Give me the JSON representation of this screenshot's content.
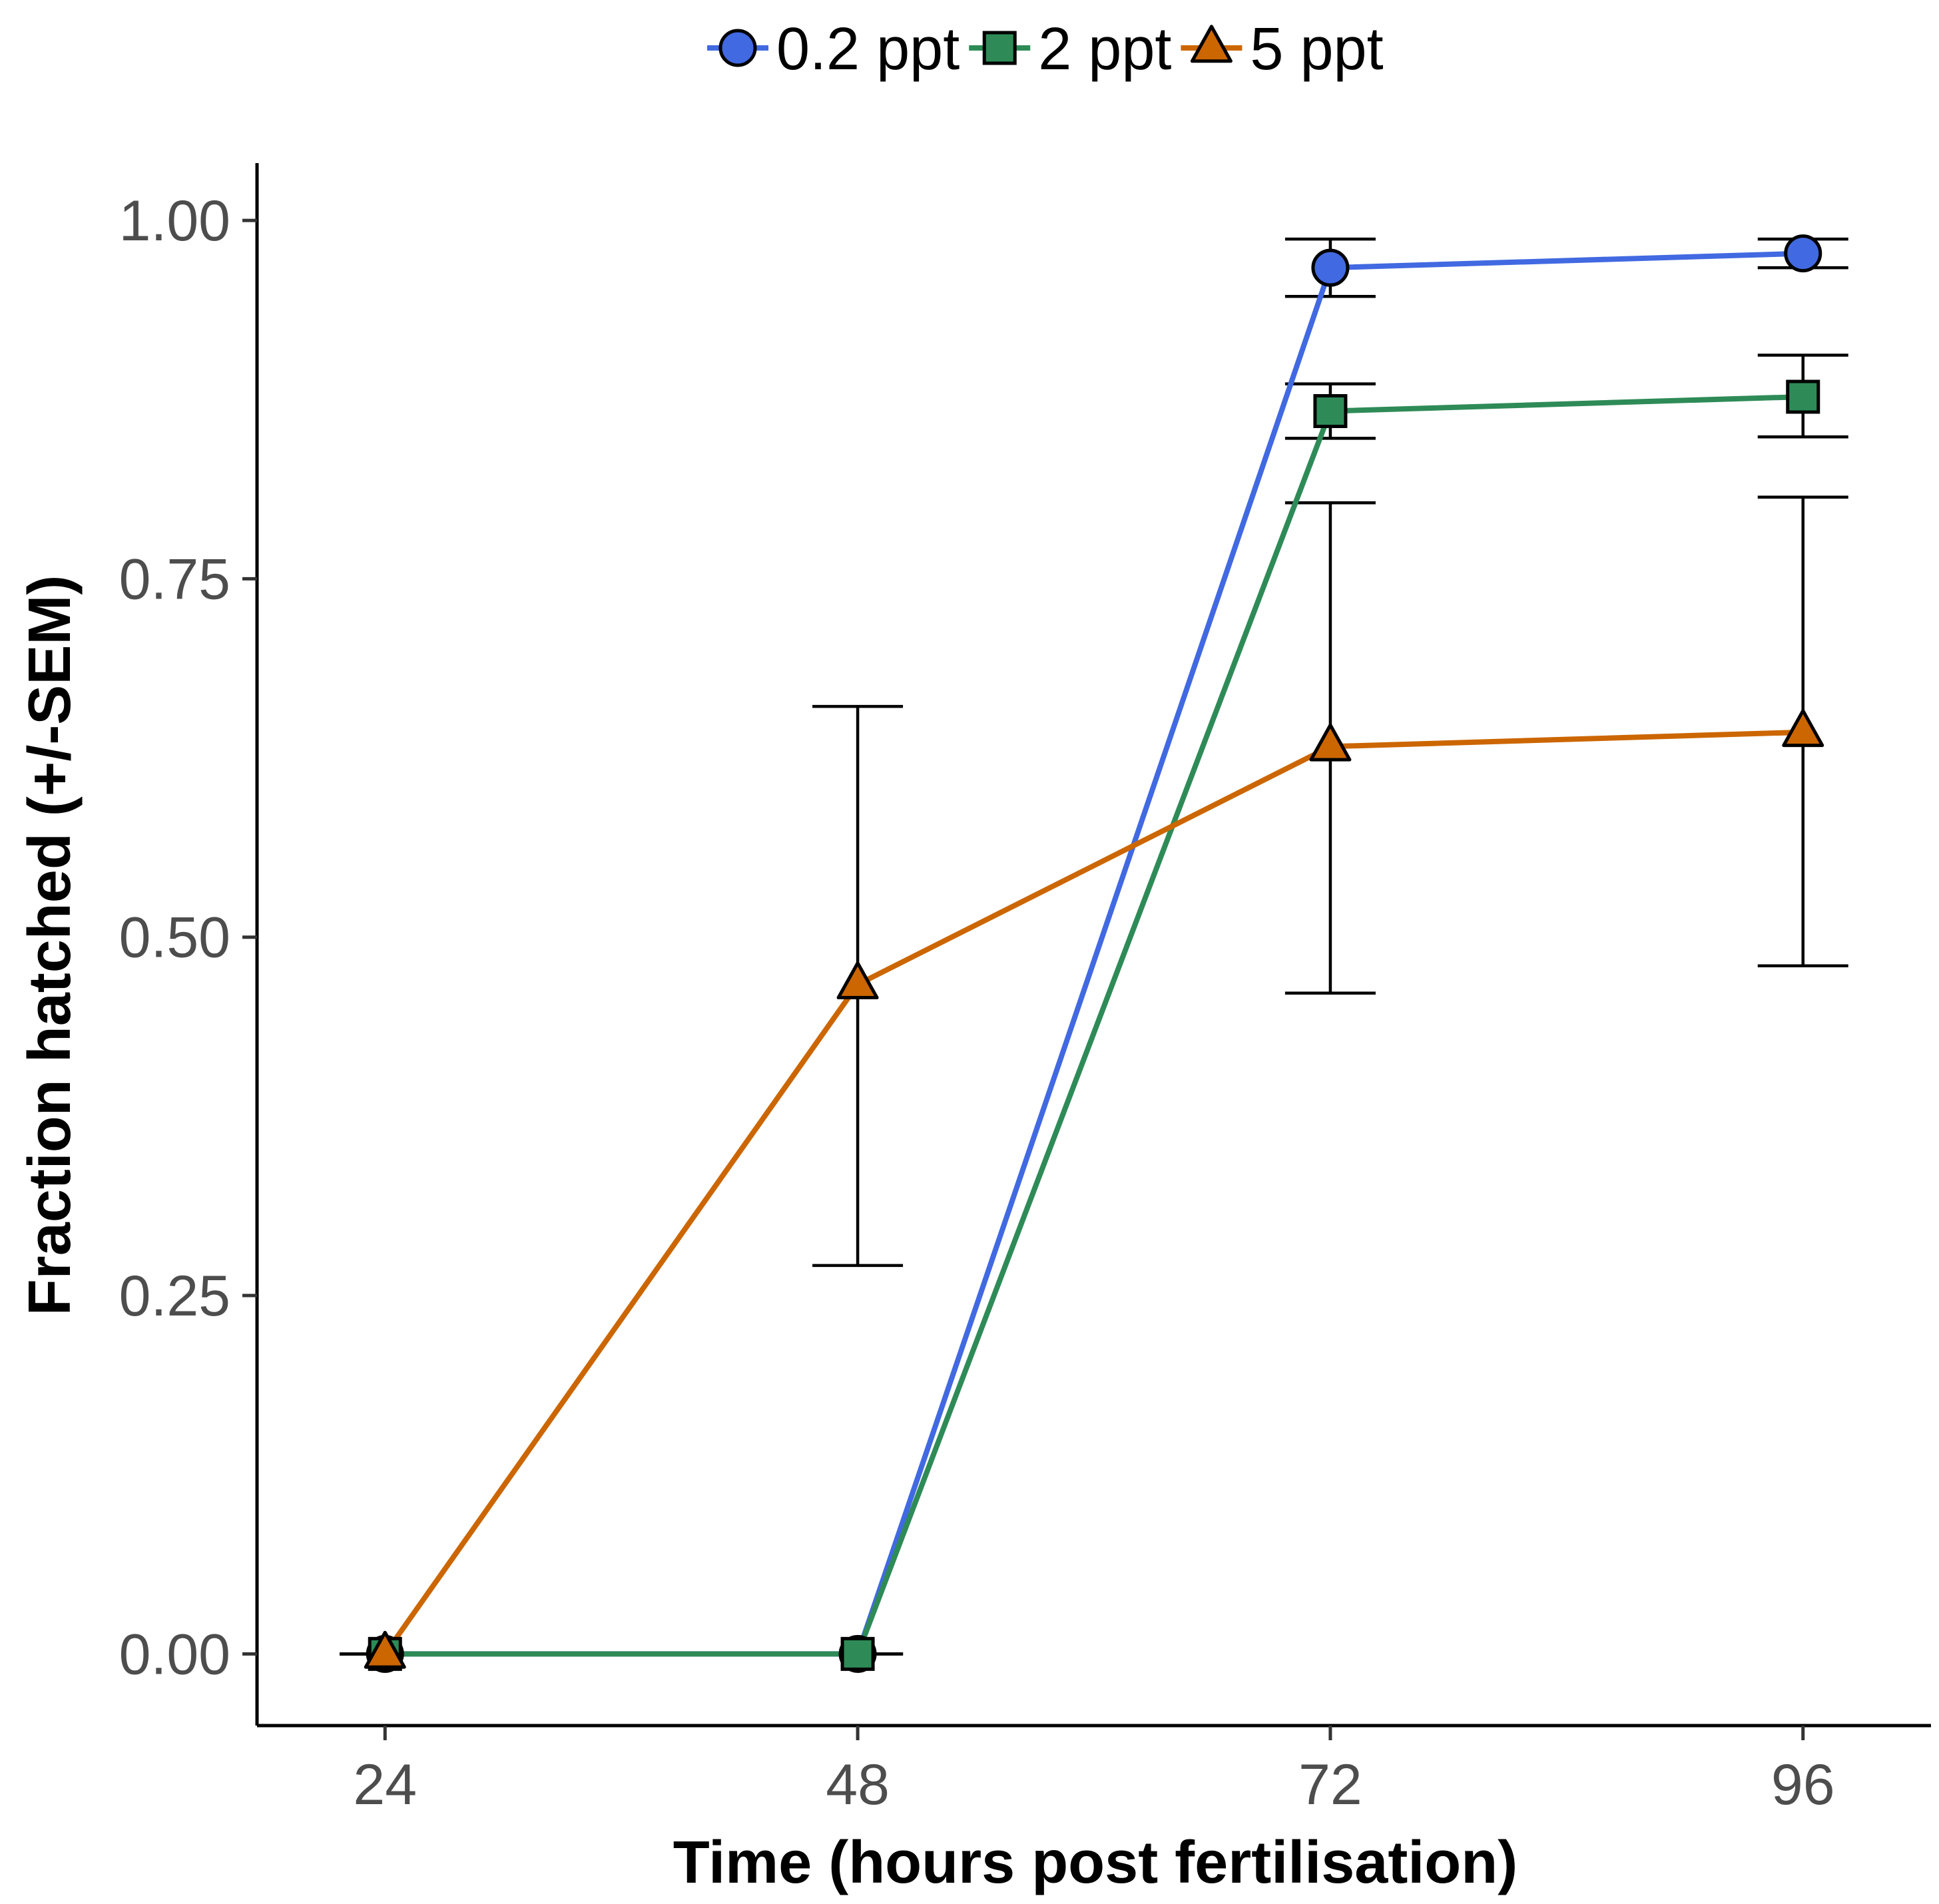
{
  "chart_data": {
    "type": "line",
    "title": "",
    "xlabel": "Time (hours post fertilisation)",
    "ylabel": "Fraction hatched (+/-SEM)",
    "x": [
      24,
      48,
      72,
      96
    ],
    "x_tick_labels": [
      "24",
      "48",
      "72",
      "96"
    ],
    "y_ticks": [
      0,
      0.25,
      0.5,
      0.75,
      1.0
    ],
    "y_tick_labels": [
      "0.00",
      "0.25",
      "0.50",
      "0.75",
      "1.00"
    ],
    "xlim": [
      17.5,
      102.5
    ],
    "ylim": [
      -0.05,
      1.04
    ],
    "legend_position": "top",
    "grid": false,
    "series": [
      {
        "name": "0.2 ppt",
        "color": "#4169E1",
        "marker": "circle",
        "values": [
          0,
          0,
          0.967,
          0.977
        ],
        "err_low": [
          0,
          0,
          0.947,
          0.967
        ],
        "err_high": [
          0,
          0,
          0.987,
          0.987
        ]
      },
      {
        "name": "2 ppt",
        "color": "#2E8B57",
        "marker": "square",
        "values": [
          0,
          0,
          0.867,
          0.877
        ],
        "err_low": [
          0,
          0,
          0.848,
          0.849
        ],
        "err_high": [
          0,
          0,
          0.886,
          0.906
        ]
      },
      {
        "name": "5 ppt",
        "color": "#CC6600",
        "marker": "triangle",
        "values": [
          0,
          0.467,
          0.633,
          0.643
        ],
        "err_low": [
          0,
          0.271,
          0.461,
          0.48
        ],
        "err_high": [
          0,
          0.661,
          0.803,
          0.807
        ]
      }
    ]
  }
}
